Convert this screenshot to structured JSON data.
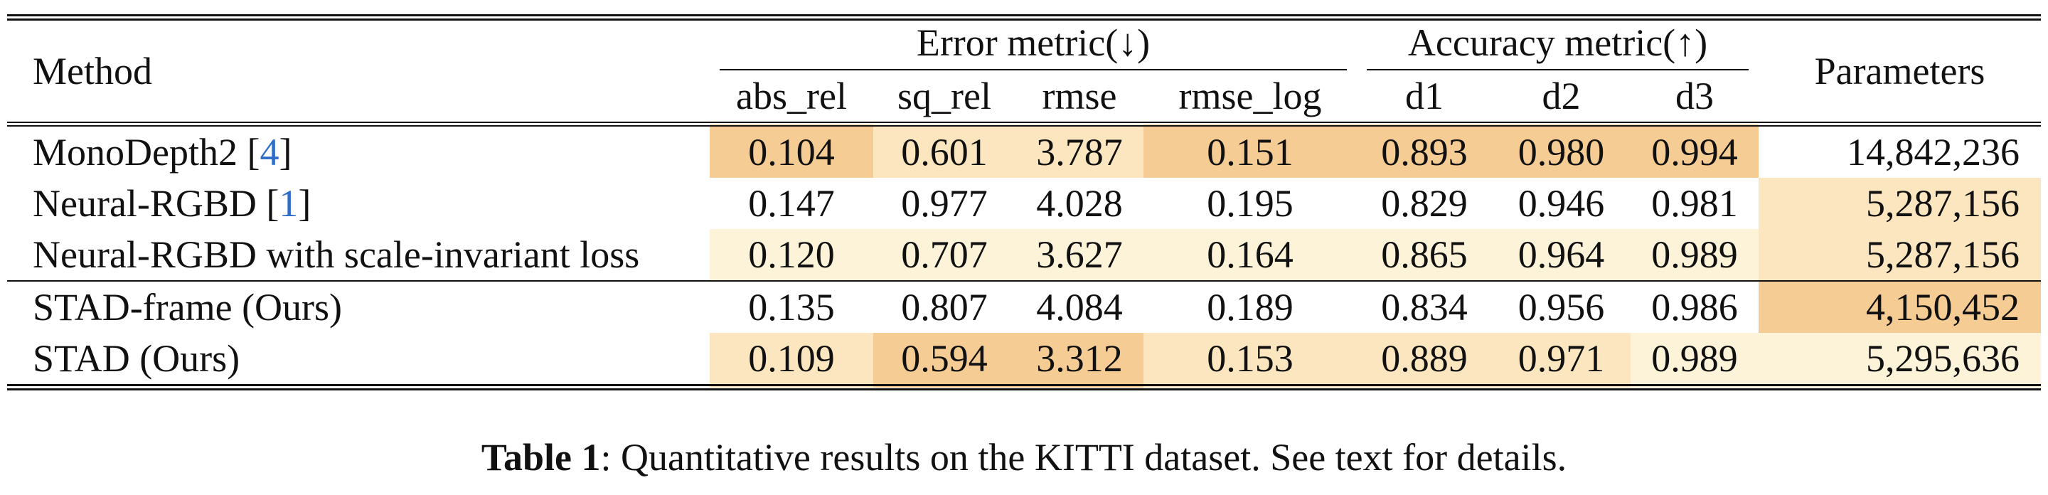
{
  "table": {
    "method_header": "Method",
    "error_group_header": "Error metric(↓)",
    "accuracy_group_header": "Accuracy metric(↑)",
    "params_header": "Parameters",
    "sub_headers": [
      "abs_rel",
      "sq_rel",
      "rmse",
      "rmse_log",
      "d1",
      "d2",
      "d3"
    ],
    "rows": [
      {
        "method": "MonoDepth2 [",
        "cite": "4",
        "cite_close": "]",
        "values": [
          "0.104",
          "0.601",
          "3.787",
          "0.151",
          "0.893",
          "0.980",
          "0.994"
        ],
        "params": "14,842,236",
        "colors": [
          "#f6cc95",
          "#fbe6c0",
          "#fbe6c0",
          "#f6cc95",
          "#f6cc95",
          "#f6cc95",
          "#f6cc95",
          "#ffffff"
        ]
      },
      {
        "method": "Neural-RGBD [",
        "cite": "1",
        "cite_close": "]",
        "values": [
          "0.147",
          "0.977",
          "4.028",
          "0.195",
          "0.829",
          "0.946",
          "0.981"
        ],
        "params": "5,287,156",
        "colors": [
          "#ffffff",
          "#ffffff",
          "#ffffff",
          "#ffffff",
          "#ffffff",
          "#ffffff",
          "#ffffff",
          "#fbe6c0"
        ]
      },
      {
        "method": "Neural-RGBD with scale-invariant loss",
        "cite": "",
        "cite_close": "",
        "values": [
          "0.120",
          "0.707",
          "3.627",
          "0.164",
          "0.865",
          "0.964",
          "0.989"
        ],
        "params": "5,287,156",
        "colors": [
          "#fdf3d9",
          "#fdf3d9",
          "#fdf3d9",
          "#fdf3d9",
          "#fdf3d9",
          "#fdf3d9",
          "#fdf3d9",
          "#fbe6c0"
        ]
      },
      {
        "method": "STAD-frame (Ours)",
        "cite": "",
        "cite_close": "",
        "values": [
          "0.135",
          "0.807",
          "4.084",
          "0.189",
          "0.834",
          "0.956",
          "0.986"
        ],
        "params": "4,150,452",
        "colors": [
          "#ffffff",
          "#ffffff",
          "#ffffff",
          "#ffffff",
          "#ffffff",
          "#ffffff",
          "#ffffff",
          "#f6cc95"
        ]
      },
      {
        "method": "STAD (Ours)",
        "cite": "",
        "cite_close": "",
        "values": [
          "0.109",
          "0.594",
          "3.312",
          "0.153",
          "0.889",
          "0.971",
          "0.989"
        ],
        "params": "5,295,636",
        "colors": [
          "#fbe6c0",
          "#f6cc95",
          "#f6cc95",
          "#fbe6c0",
          "#fbe6c0",
          "#fbe6c0",
          "#fdf3d9",
          "#fdf3d9"
        ]
      }
    ]
  },
  "caption": {
    "label": "Table 1",
    "text": ": Quantitative results on the KITTI dataset. See text for details."
  }
}
